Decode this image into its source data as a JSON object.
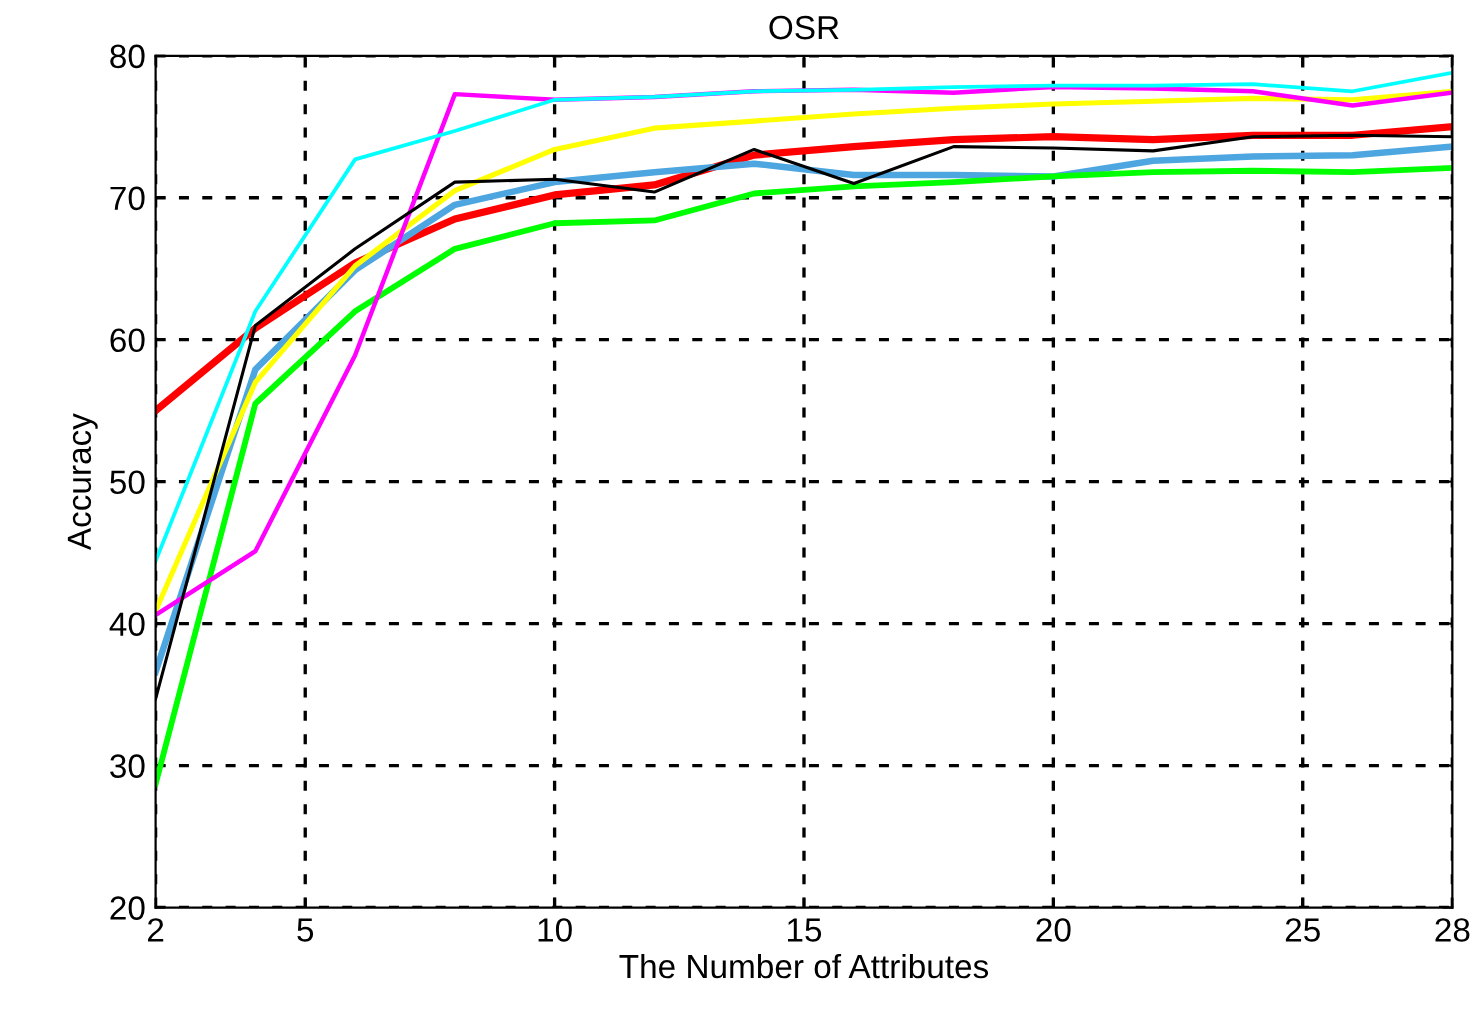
{
  "chart_data": {
    "type": "line",
    "title": "OSR",
    "xlabel": "The Number of Attributes",
    "ylabel": "Accuracy",
    "x": [
      2,
      4,
      6,
      8,
      10,
      12,
      14,
      16,
      18,
      20,
      22,
      24,
      26,
      28
    ],
    "series": [
      {
        "color": "#ff0000",
        "values": [
          55.0,
          60.8,
          65.4,
          68.5,
          70.2,
          70.9,
          73.0,
          73.6,
          74.1,
          74.3,
          74.1,
          74.4,
          74.4,
          75.0
        ]
      },
      {
        "color": "#4da6e0",
        "values": [
          36.6,
          57.9,
          64.9,
          69.5,
          71.1,
          71.8,
          72.4,
          71.6,
          71.6,
          71.5,
          72.6,
          72.9,
          73.0,
          73.6
        ]
      },
      {
        "color": "#00ff00",
        "values": [
          28.7,
          55.5,
          62.0,
          66.4,
          68.2,
          68.4,
          70.3,
          70.8,
          71.1,
          71.5,
          71.8,
          71.9,
          71.8,
          72.1
        ]
      },
      {
        "color": "#ffff00",
        "values": [
          40.9,
          57.0,
          65.2,
          70.5,
          73.4,
          74.9,
          75.4,
          75.9,
          76.3,
          76.6,
          76.8,
          77.0,
          76.9,
          77.5
        ]
      },
      {
        "color": "#ff00ff",
        "values": [
          40.6,
          45.1,
          58.9,
          77.3,
          76.9,
          77.1,
          77.5,
          77.6,
          77.4,
          77.8,
          77.7,
          77.5,
          76.5,
          77.4
        ]
      },
      {
        "color": "#00ffff",
        "values": [
          44.4,
          62.0,
          72.7,
          74.7,
          76.9,
          77.1,
          77.5,
          77.6,
          77.8,
          77.9,
          77.9,
          78.0,
          77.5,
          78.8
        ]
      },
      {
        "color": "#000000",
        "values": [
          34.7,
          61.0,
          66.4,
          71.1,
          71.3,
          70.4,
          73.4,
          71.0,
          73.6,
          73.5,
          73.3,
          74.3,
          74.4,
          74.3
        ]
      }
    ],
    "xlim": [
      2,
      28
    ],
    "ylim": [
      20,
      80
    ],
    "xticks": [
      2,
      5,
      10,
      15,
      20,
      25,
      28
    ],
    "yticks": [
      20,
      30,
      40,
      50,
      60,
      70,
      80
    ],
    "grid": true,
    "line_style": "solid",
    "marker": "none"
  }
}
